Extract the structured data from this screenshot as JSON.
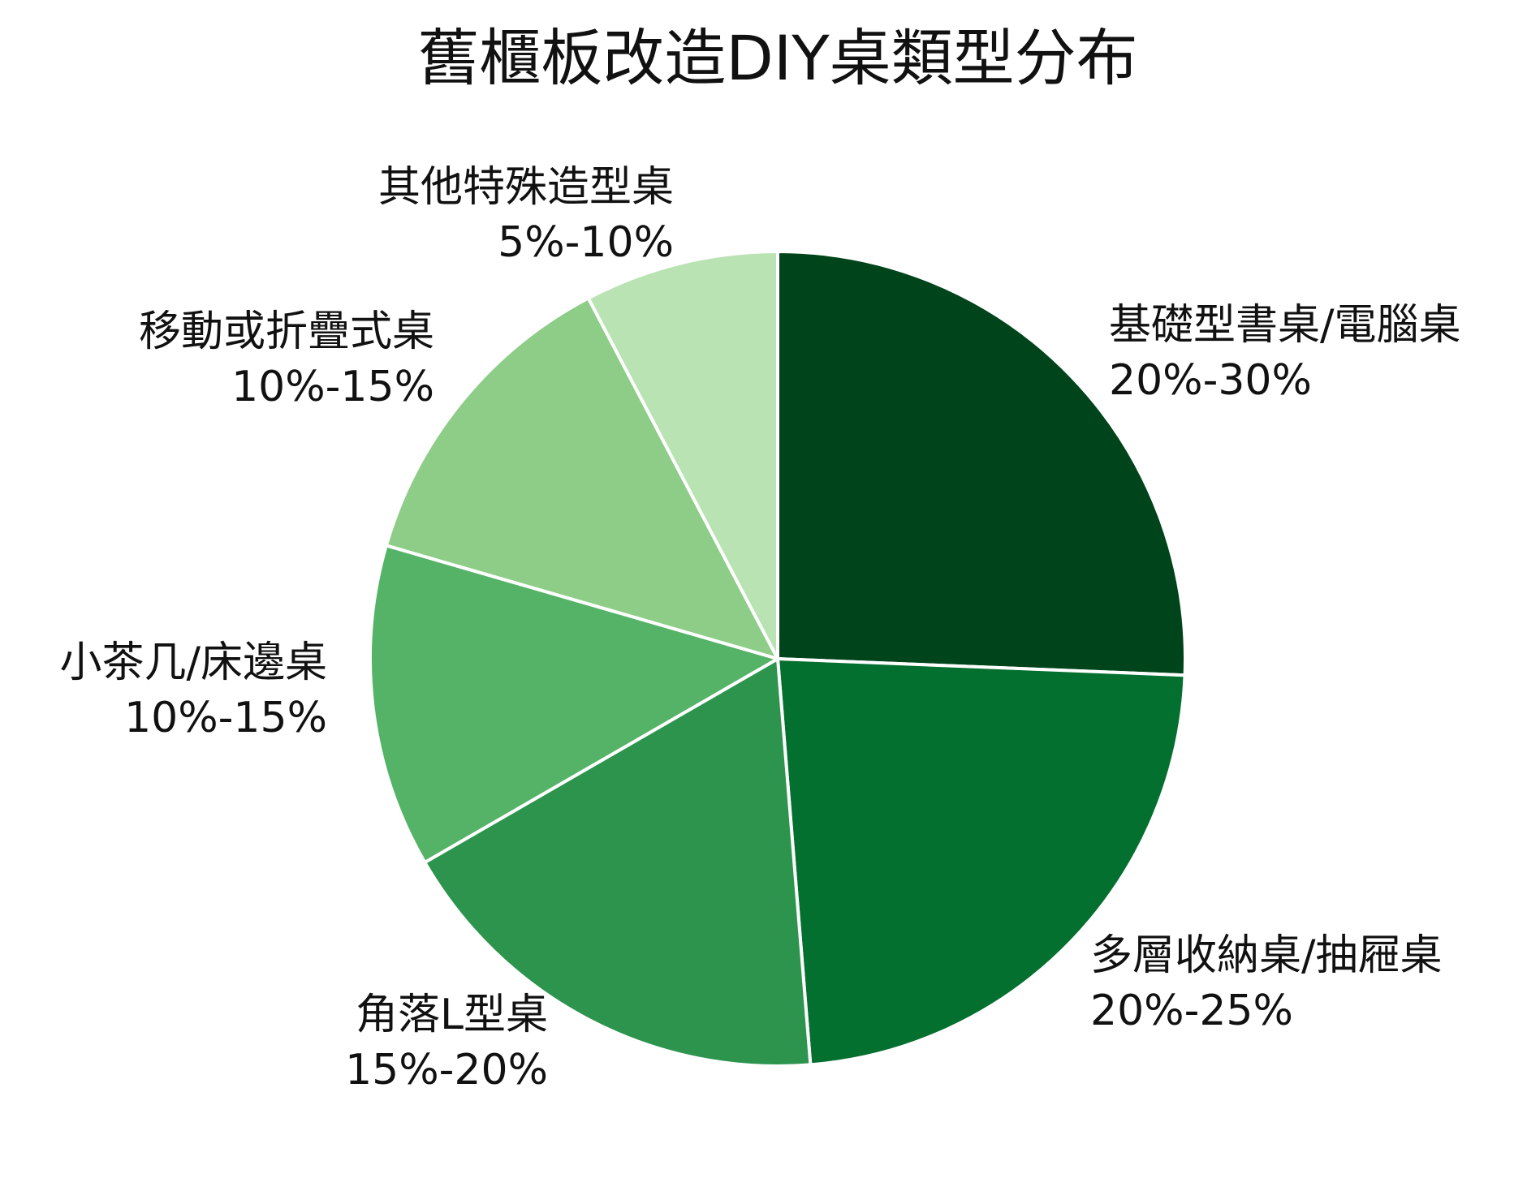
{
  "chart_data": {
    "type": "pie",
    "title": "舊櫃板改造DIY桌類型分布",
    "start_angle_deg": 0,
    "direction": "clockwise",
    "slices": [
      {
        "name": "基礎型書桌/電腦桌",
        "range": "20%-30%",
        "value": 25,
        "color": "#00441b"
      },
      {
        "name": "多層收納桌/抽屜桌",
        "range": "20%-25%",
        "value": 22.5,
        "color": "#04702f"
      },
      {
        "name": "角落L型桌",
        "range": "15%-20%",
        "value": 17.5,
        "color": "#2d944e"
      },
      {
        "name": "小茶几/床邊桌",
        "range": "10%-15%",
        "value": 12.5,
        "color": "#54b367"
      },
      {
        "name": "移動或折疊式桌",
        "range": "10%-15%",
        "value": 12.5,
        "color": "#8ecd88"
      },
      {
        "name": "其他特殊造型桌",
        "range": "5%-10%",
        "value": 7.5,
        "color": "#b9e3b2"
      }
    ]
  }
}
